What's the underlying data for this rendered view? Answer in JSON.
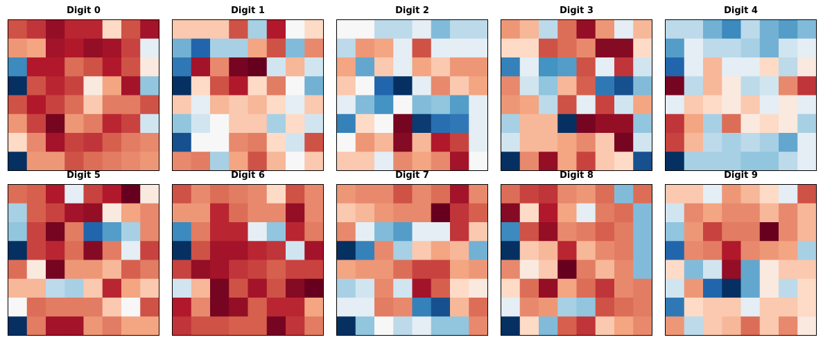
{
  "chart_data": [
    {
      "type": "heatmap",
      "title": "Digit 0",
      "cmap": "RdBu_r",
      "grid": [
        [
          -0.55,
          -0.65,
          -0.85,
          -0.7,
          -0.7,
          -0.1,
          -0.55,
          -0.8
        ],
        [
          -0.3,
          -0.25,
          -0.8,
          -0.75,
          -0.85,
          -0.8,
          -0.6,
          0.05
        ],
        [
          0.55,
          -0.75,
          -0.75,
          -0.45,
          -0.55,
          -0.75,
          -0.55,
          -0.05
        ],
        [
          1.0,
          -0.55,
          -0.7,
          -0.6,
          -0.05,
          -0.25,
          -0.8,
          0.25
        ],
        [
          -0.55,
          -0.75,
          -0.6,
          -0.45,
          -0.15,
          -0.4,
          -0.4,
          -0.55
        ],
        [
          -0.3,
          -0.6,
          -0.95,
          -0.3,
          -0.4,
          -0.7,
          -0.6,
          0.1
        ],
        [
          -0.1,
          -0.35,
          -0.8,
          -0.6,
          -0.65,
          -0.5,
          -0.4,
          -0.35
        ],
        [
          1.0,
          -0.3,
          -0.3,
          -0.55,
          -0.45,
          -0.4,
          -0.35,
          -0.3
        ]
      ]
    },
    {
      "type": "heatmap",
      "title": "Digit 1",
      "cmap": "RdBu_r",
      "grid": [
        [
          -0.15,
          -0.15,
          -0.15,
          -0.55,
          0.2,
          -0.75,
          0.0,
          -0.1
        ],
        [
          0.35,
          0.75,
          0.2,
          0.2,
          -0.25,
          -0.55,
          0.3,
          -0.35
        ],
        [
          0.65,
          -0.8,
          -0.35,
          -0.95,
          -1.0,
          0.1,
          -0.2,
          0.1
        ],
        [
          1.0,
          -0.1,
          -0.55,
          -0.75,
          -0.1,
          -0.4,
          0.0,
          0.35
        ],
        [
          -0.15,
          0.05,
          -0.2,
          -0.15,
          -0.2,
          -0.1,
          0.05,
          -0.15
        ],
        [
          0.25,
          0.1,
          0.0,
          -0.15,
          -0.15,
          0.2,
          -0.1,
          0.1
        ],
        [
          0.85,
          0.0,
          0.0,
          -0.35,
          -0.4,
          -0.1,
          0.1,
          -0.55
        ],
        [
          -0.35,
          -0.4,
          0.2,
          -0.25,
          -0.55,
          -0.2,
          0.0,
          -0.15
        ]
      ]
    },
    {
      "type": "heatmap",
      "title": "Digit 2",
      "cmap": "RdBu_r",
      "grid": [
        [
          0.0,
          0.0,
          0.15,
          0.15,
          0.05,
          0.3,
          0.15,
          0.15
        ],
        [
          0.15,
          -0.3,
          -0.25,
          0.05,
          -0.55,
          0.05,
          0.05,
          0.05
        ],
        [
          -0.25,
          0.4,
          -0.15,
          0.05,
          -0.25,
          -0.15,
          -0.3,
          -0.3
        ],
        [
          -0.15,
          0.0,
          0.75,
          1.0,
          0.05,
          -0.35,
          -0.15,
          -0.25
        ],
        [
          0.05,
          0.3,
          0.5,
          0.0,
          0.3,
          0.25,
          0.45,
          0.05
        ],
        [
          0.6,
          -0.1,
          0.0,
          -0.95,
          0.95,
          0.7,
          0.65,
          0.05
        ],
        [
          0.0,
          -0.3,
          -0.2,
          -0.9,
          -0.2,
          -0.75,
          -0.6,
          0.05
        ],
        [
          -0.15,
          -0.15,
          0.05,
          -0.35,
          -0.25,
          -0.35,
          -0.8,
          0.0
        ]
      ]
    },
    {
      "type": "heatmap",
      "title": "Digit 3",
      "cmap": "RdBu_r",
      "grid": [
        [
          -0.3,
          -0.2,
          0.15,
          -0.45,
          -0.85,
          -0.3,
          0.05,
          -0.2
        ],
        [
          -0.1,
          -0.1,
          -0.55,
          -0.45,
          -0.35,
          -0.9,
          -0.9,
          -0.1
        ],
        [
          0.6,
          0.05,
          0.5,
          0.45,
          -0.55,
          0.05,
          -0.65,
          0.1
        ],
        [
          -0.35,
          0.1,
          0.25,
          -0.2,
          -0.5,
          0.65,
          0.85,
          0.3
        ],
        [
          -0.3,
          -0.25,
          0.15,
          -0.55,
          0.05,
          -0.6,
          0.1,
          -0.25
        ],
        [
          0.2,
          -0.2,
          -0.2,
          1.0,
          -0.95,
          -0.85,
          -0.85,
          0.25
        ],
        [
          0.1,
          -0.2,
          -0.2,
          -0.25,
          -0.35,
          -0.15,
          -0.95,
          0.1
        ],
        [
          1.0,
          -0.35,
          -0.85,
          -0.25,
          -0.6,
          -0.15,
          -0.1,
          0.85
        ]
      ]
    },
    {
      "type": "heatmap",
      "title": "Digit 4",
      "cmap": "RdBu_r",
      "grid": [
        [
          0.15,
          0.15,
          0.35,
          0.55,
          0.15,
          0.35,
          0.45,
          0.3
        ],
        [
          0.45,
          0.05,
          0.15,
          0.15,
          0.2,
          0.35,
          0.1,
          0.05
        ],
        [
          0.75,
          0.05,
          -0.2,
          0.05,
          0.05,
          -0.1,
          0.15,
          -0.05
        ],
        [
          -0.95,
          0.15,
          -0.2,
          -0.05,
          0.15,
          0.1,
          -0.35,
          -0.65
        ],
        [
          0.05,
          -0.15,
          -0.1,
          -0.05,
          -0.15,
          0.05,
          -0.05,
          0.05
        ],
        [
          -0.65,
          -0.25,
          0.2,
          -0.45,
          -0.05,
          -0.1,
          -0.05,
          0.2
        ],
        [
          -0.6,
          -0.2,
          0.15,
          0.2,
          0.15,
          0.2,
          0.4,
          0.05
        ],
        [
          1.0,
          0.2,
          0.2,
          0.2,
          0.25,
          0.25,
          0.15,
          0.05
        ]
      ]
    },
    {
      "type": "heatmap",
      "title": "Digit 5",
      "cmap": "RdBu_r",
      "grid": [
        [
          -0.45,
          -0.5,
          -0.75,
          0.05,
          -0.6,
          -0.75,
          -1.0,
          -0.05
        ],
        [
          0.2,
          -0.5,
          -0.6,
          -0.8,
          -0.85,
          -0.05,
          -0.25,
          -0.35
        ],
        [
          0.25,
          -0.6,
          -0.95,
          -0.4,
          0.75,
          0.45,
          0.2,
          -0.35
        ],
        [
          1.0,
          -0.6,
          -0.7,
          -0.45,
          -0.9,
          -0.4,
          0.05,
          -0.6
        ],
        [
          -0.45,
          -0.05,
          -0.95,
          -0.3,
          -0.3,
          -0.2,
          -0.5,
          -0.4
        ],
        [
          -0.2,
          -0.2,
          0.15,
          0.2,
          -0.15,
          -0.7,
          -0.25,
          -0.15
        ],
        [
          0.0,
          -0.45,
          -0.4,
          -0.4,
          -0.4,
          -0.15,
          0.0,
          -0.55
        ],
        [
          1.0,
          -0.4,
          -0.8,
          -0.8,
          -0.3,
          -0.4,
          -0.25,
          -0.25
        ]
      ]
    },
    {
      "type": "heatmap",
      "title": "Digit 6",
      "cmap": "RdBu_r",
      "grid": [
        [
          -0.55,
          -0.35,
          -0.45,
          -0.4,
          -0.35,
          -0.1,
          -0.55,
          -0.35
        ],
        [
          -0.3,
          -0.3,
          -0.7,
          -0.45,
          -0.35,
          -0.35,
          -0.85,
          -0.35
        ],
        [
          0.55,
          -0.4,
          -0.7,
          -0.7,
          0.05,
          0.25,
          -0.7,
          -0.4
        ],
        [
          1.0,
          -0.55,
          -0.8,
          -0.8,
          -0.7,
          -0.65,
          0.1,
          -0.8
        ],
        [
          -0.6,
          -0.85,
          -0.8,
          -0.65,
          -0.6,
          -0.5,
          -0.6,
          -0.6
        ],
        [
          0.1,
          -0.2,
          -0.95,
          -0.55,
          -0.8,
          -0.55,
          -0.9,
          -1.0
        ],
        [
          -0.75,
          -0.35,
          -0.95,
          -0.85,
          -0.5,
          -0.7,
          -0.7,
          -0.25
        ],
        [
          -0.65,
          -0.55,
          -0.55,
          -0.5,
          -0.5,
          -0.95,
          -0.65,
          -0.4
        ]
      ]
    },
    {
      "type": "heatmap",
      "title": "Digit 7",
      "cmap": "RdBu_r",
      "grid": [
        [
          -0.3,
          -0.35,
          -0.35,
          -0.55,
          -0.35,
          -0.45,
          -0.8,
          -0.35
        ],
        [
          -0.15,
          -0.2,
          -0.3,
          -0.35,
          -0.35,
          -1.0,
          -0.65,
          -0.5
        ],
        [
          -0.35,
          0.05,
          0.3,
          0.45,
          0.05,
          0.05,
          -0.65,
          -0.15
        ],
        [
          1.0,
          0.6,
          -0.35,
          0.2,
          -0.15,
          -0.25,
          -0.2,
          0.35
        ],
        [
          -0.25,
          -0.3,
          -0.3,
          -0.45,
          -0.6,
          -0.6,
          -0.25,
          -0.3
        ],
        [
          0.2,
          0.1,
          -0.35,
          0.1,
          -0.8,
          -0.5,
          -0.1,
          -0.05
        ],
        [
          0.05,
          0.05,
          -0.4,
          -0.35,
          0.6,
          0.85,
          -0.2,
          -0.45
        ],
        [
          1.0,
          0.25,
          0.0,
          0.15,
          0.05,
          0.25,
          0.25,
          -0.35
        ]
      ]
    },
    {
      "type": "heatmap",
      "title": "Digit 8",
      "cmap": "RdBu_r",
      "grid": [
        [
          -0.45,
          -0.6,
          -0.65,
          -0.35,
          -0.3,
          -0.45,
          0.3,
          -0.45
        ],
        [
          -0.9,
          -0.1,
          -0.75,
          -0.25,
          0.05,
          -0.4,
          -0.45,
          0.3
        ],
        [
          0.55,
          -0.55,
          -0.85,
          -0.35,
          -0.4,
          -0.5,
          -0.4,
          0.3
        ],
        [
          1.0,
          -0.15,
          -0.2,
          -0.7,
          -0.2,
          -0.35,
          -0.4,
          0.3
        ],
        [
          -0.35,
          -0.05,
          -0.15,
          -1.0,
          -0.4,
          -0.2,
          -0.35,
          0.3
        ],
        [
          -0.1,
          -0.45,
          -0.85,
          -0.25,
          -0.45,
          -0.65,
          -0.35,
          -0.4
        ],
        [
          0.05,
          -0.35,
          -0.3,
          0.2,
          0.25,
          -0.55,
          -0.45,
          -0.4
        ],
        [
          1.0,
          -0.1,
          0.3,
          -0.5,
          -0.65,
          -0.15,
          -0.25,
          -0.35
        ]
      ]
    },
    {
      "type": "heatmap",
      "title": "Digit 9",
      "cmap": "RdBu_r",
      "grid": [
        [
          -0.15,
          -0.15,
          0.05,
          -0.3,
          -0.2,
          -0.1,
          0.05,
          -0.55
        ],
        [
          0.1,
          -0.35,
          -0.25,
          -0.35,
          -0.35,
          -0.2,
          -0.35,
          -0.2
        ],
        [
          0.25,
          -0.3,
          -0.6,
          -0.4,
          -0.4,
          -1.0,
          -0.35,
          -0.2
        ],
        [
          0.75,
          -0.35,
          -0.4,
          -0.75,
          -0.35,
          -0.3,
          -0.25,
          0.2
        ],
        [
          -0.1,
          0.3,
          0.1,
          -0.85,
          0.4,
          -0.05,
          -0.15,
          -0.15
        ],
        [
          0.1,
          -0.3,
          0.75,
          1.0,
          0.4,
          -0.05,
          0.15,
          -0.1
        ],
        [
          0.65,
          -0.1,
          -0.15,
          -0.15,
          0.05,
          -0.15,
          -0.15,
          -0.1
        ],
        [
          -0.3,
          0.15,
          -0.15,
          -0.2,
          -0.45,
          -0.15,
          -0.35,
          -0.05
        ]
      ]
    }
  ]
}
